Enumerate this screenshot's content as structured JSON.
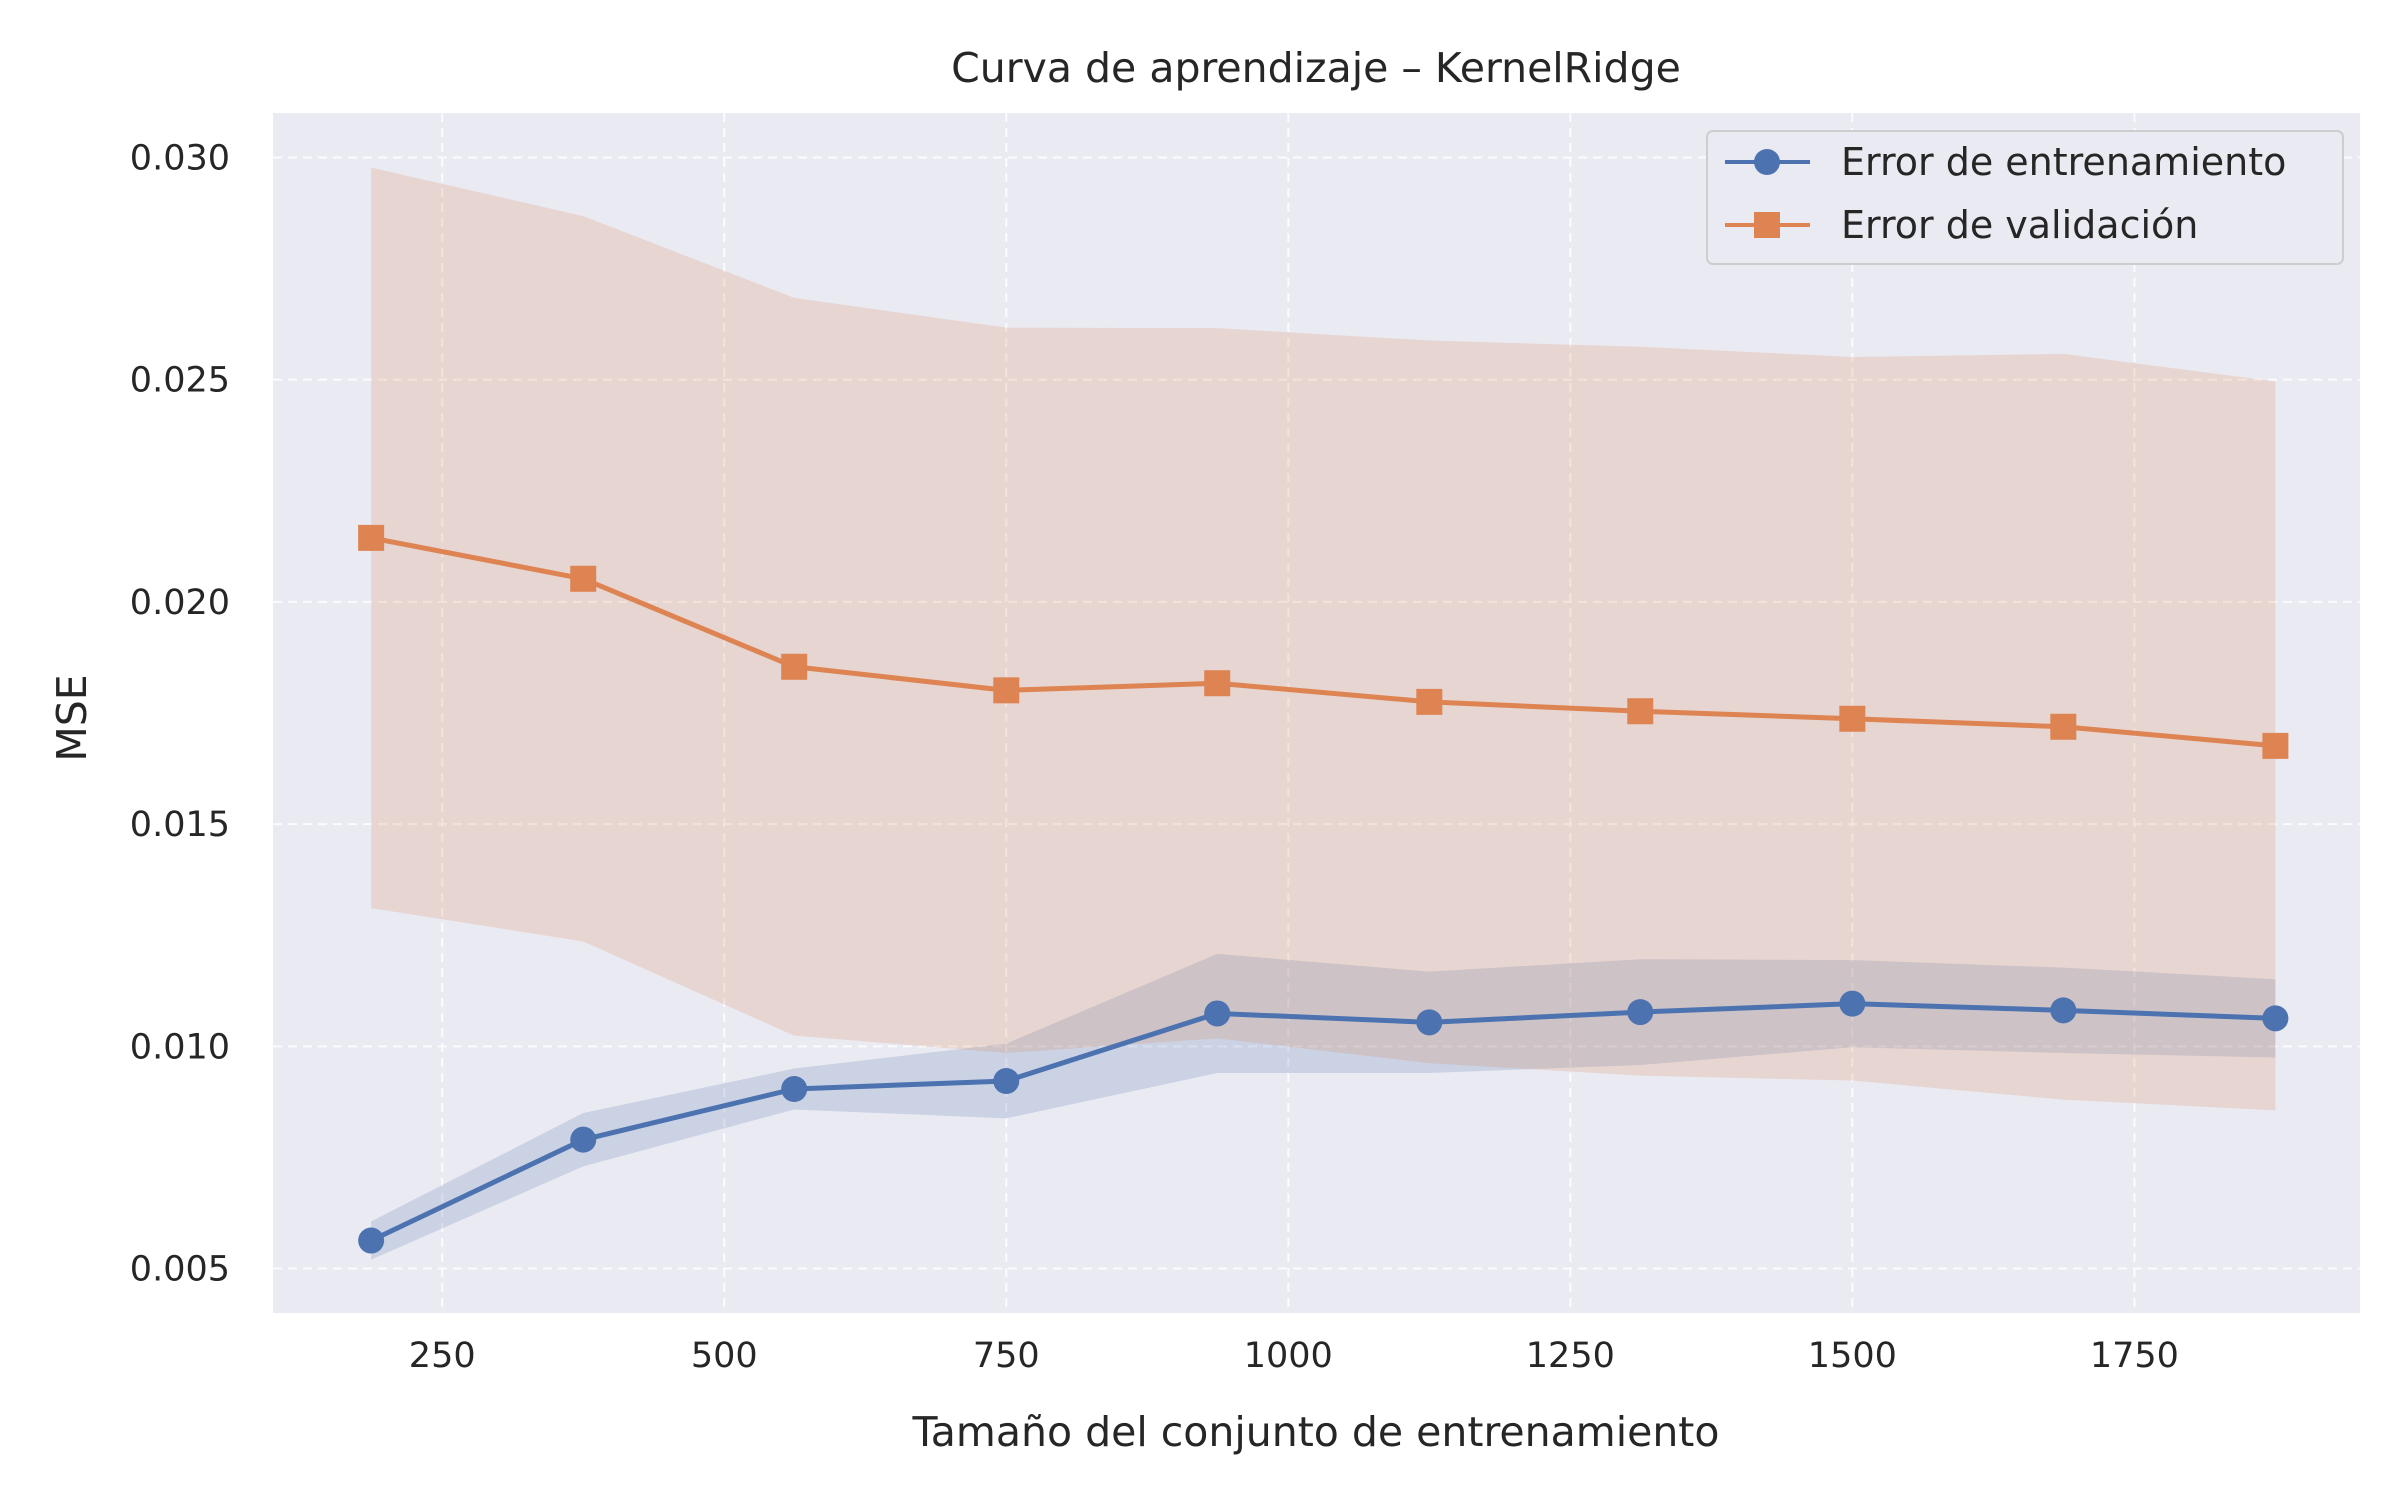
{
  "chart_data": {
    "type": "line",
    "title": "Curva de aprendizaje – KernelRidge",
    "xlabel": "Tamaño del conjunto de entrenamiento",
    "ylabel": "MSE",
    "xlim": [
      100,
      1950
    ],
    "ylim": [
      0.004,
      0.031
    ],
    "xticks": [
      250,
      500,
      750,
      1000,
      1250,
      1500,
      1750
    ],
    "xtick_labels": [
      "250",
      "500",
      "750",
      "1000",
      "1250",
      "1500",
      "1750"
    ],
    "yticks": [
      0.005,
      0.01,
      0.015,
      0.02,
      0.025,
      0.03
    ],
    "ytick_labels": [
      "0.005",
      "0.010",
      "0.015",
      "0.020",
      "0.025",
      "0.030"
    ],
    "grid": true,
    "legend_position": "top-right",
    "x": [
      187,
      375,
      562,
      750,
      937,
      1125,
      1312,
      1500,
      1687,
      1875
    ],
    "series": [
      {
        "name": "Error de entrenamiento",
        "color": "#4c72b0",
        "marker": "circle",
        "values": [
          0.00563,
          0.0079,
          0.00904,
          0.00922,
          0.01074,
          0.01054,
          0.01077,
          0.01096,
          0.01081,
          0.01063
        ],
        "band_lower": [
          0.0052,
          0.0073,
          0.00858,
          0.00838,
          0.0094,
          0.0094,
          0.00958,
          0.00998,
          0.00985,
          0.00975
        ],
        "band_upper": [
          0.00606,
          0.0085,
          0.0095,
          0.01006,
          0.01208,
          0.01168,
          0.01196,
          0.01194,
          0.01177,
          0.01151
        ]
      },
      {
        "name": "Error de validación",
        "color": "#dd8452",
        "marker": "square",
        "values": [
          0.02144,
          0.02052,
          0.01854,
          0.01801,
          0.01817,
          0.01775,
          0.01754,
          0.01737,
          0.01719,
          0.01676
        ],
        "band_lower": [
          0.01311,
          0.01236,
          0.01024,
          0.00985,
          0.01018,
          0.00962,
          0.00934,
          0.00923,
          0.0088,
          0.00856
        ],
        "band_upper": [
          0.02977,
          0.02868,
          0.02684,
          0.02617,
          0.02616,
          0.02588,
          0.02574,
          0.02551,
          0.02558,
          0.02496
        ]
      }
    ]
  }
}
